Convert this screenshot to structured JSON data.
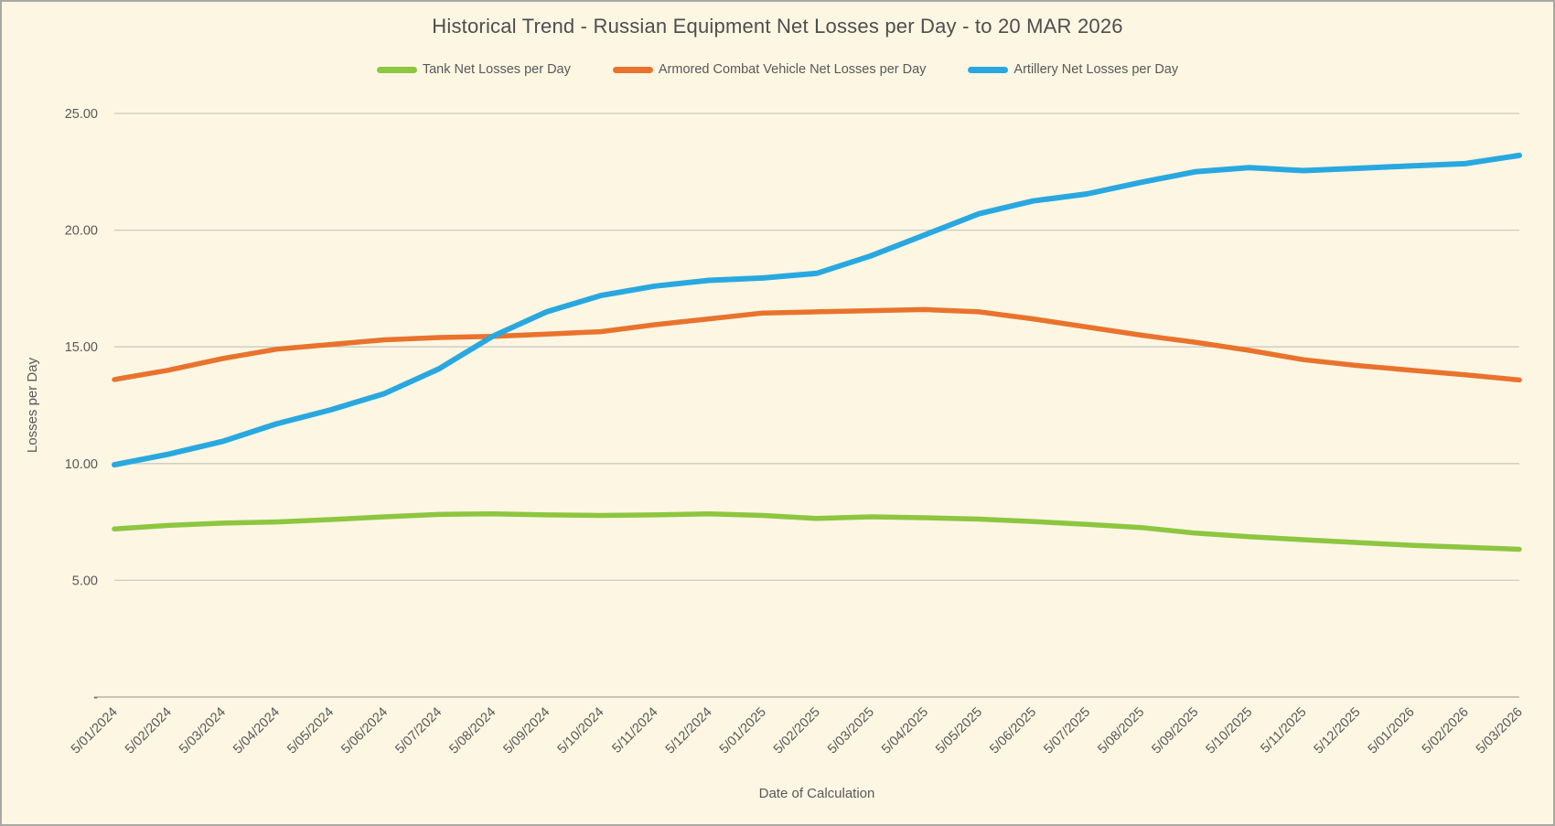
{
  "header": {
    "title": "Historical Trend - Russian Equipment Net Losses per Day - to 20 MAR 2026"
  },
  "colors": {
    "background": "#FCF6E3",
    "gridline": "#CDCBC2",
    "axis_line": "#B5B3AA",
    "text": "#595959",
    "title_text": "#4E4E4E",
    "frame_border": "#A8A8A3"
  },
  "chart_data": {
    "type": "line",
    "title": "Historical Trend - Russian Equipment Net Losses per Day - to 20 MAR 2026",
    "xlabel": "Date of Calculation",
    "ylabel": "Losses per Day",
    "grid": "horizontal",
    "legend_position": "top",
    "ylim": [
      0,
      25
    ],
    "y_ticks": [
      {
        "label": "25.00",
        "value": 25
      },
      {
        "label": "20.00",
        "value": 20
      },
      {
        "label": "15.00",
        "value": 15
      },
      {
        "label": "10.00",
        "value": 10
      },
      {
        "label": "5.00",
        "value": 5
      },
      {
        "label": "-",
        "value": 0
      }
    ],
    "x_labels": [
      "5/01/2024",
      "5/02/2024",
      "5/03/2024",
      "5/04/2024",
      "5/05/2024",
      "5/06/2024",
      "5/07/2024",
      "5/08/2024",
      "5/09/2024",
      "5/10/2024",
      "5/11/2024",
      "5/12/2024",
      "5/01/2025",
      "5/02/2025",
      "5/03/2025",
      "5/04/2025",
      "5/05/2025",
      "5/06/2025",
      "5/07/2025",
      "5/08/2025",
      "5/09/2025",
      "5/10/2025",
      "5/11/2025",
      "5/12/2025",
      "5/01/2026",
      "5/02/2026",
      "5/03/2026"
    ],
    "series": [
      {
        "name": "Tank Net Losses per Day",
        "color": "#8DC63F",
        "values": [
          7.2,
          7.35,
          7.45,
          7.5,
          7.6,
          7.72,
          7.82,
          7.85,
          7.8,
          7.78,
          7.8,
          7.85,
          7.78,
          7.65,
          7.72,
          7.68,
          7.62,
          7.52,
          7.4,
          7.26,
          7.02,
          6.87,
          6.74,
          6.62,
          6.5,
          6.42,
          6.33
        ]
      },
      {
        "name": "Armored Combat Vehicle Net Losses per Day",
        "color": "#E9732C",
        "values": [
          13.6,
          14.0,
          14.5,
          14.9,
          15.1,
          15.3,
          15.4,
          15.45,
          15.55,
          15.65,
          15.95,
          16.2,
          16.45,
          16.5,
          16.55,
          16.6,
          16.5,
          16.2,
          15.85,
          15.5,
          15.2,
          14.85,
          14.45,
          14.2,
          14.0,
          13.8,
          13.58
        ]
      },
      {
        "name": "Artillery Net Losses per Day",
        "color": "#29A8E0",
        "values": [
          9.95,
          10.4,
          10.95,
          11.7,
          12.3,
          13.0,
          14.05,
          15.45,
          16.5,
          17.2,
          17.6,
          17.85,
          17.95,
          18.15,
          18.9,
          19.8,
          20.7,
          21.25,
          21.55,
          22.05,
          22.5,
          22.68,
          22.55,
          22.65,
          22.75,
          22.85,
          23.2
        ]
      }
    ]
  }
}
